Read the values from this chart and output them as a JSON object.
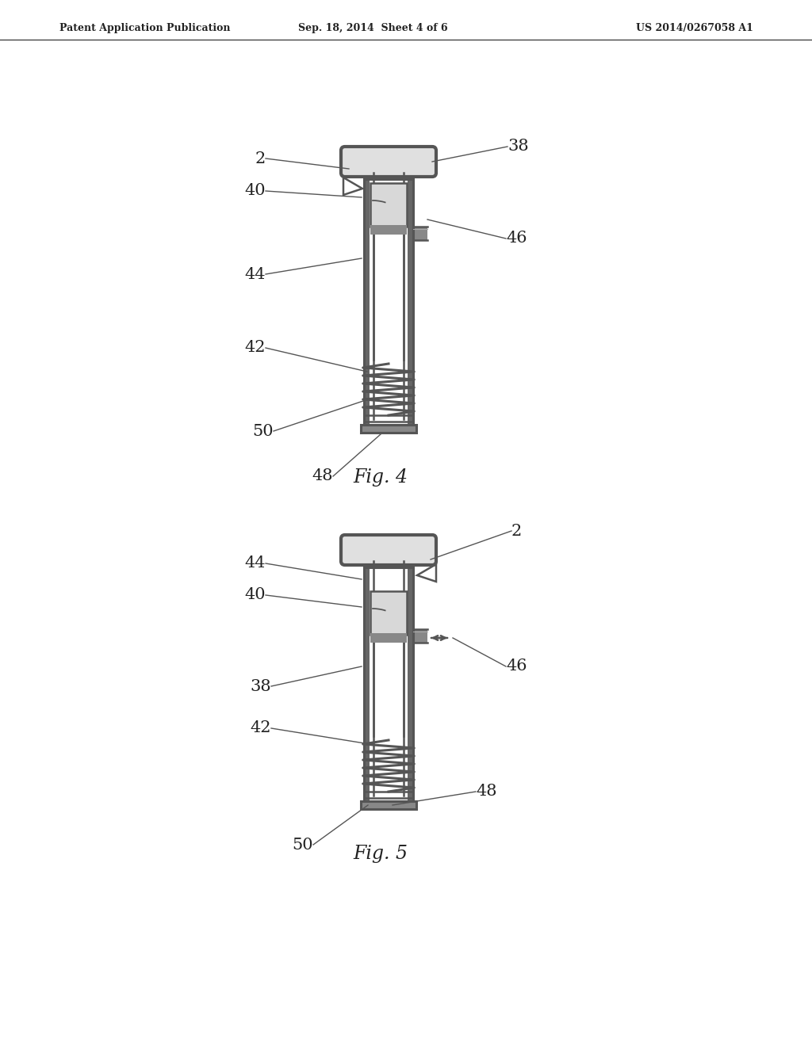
{
  "bg_color": "#ffffff",
  "lc": "#555555",
  "lc_dark": "#444444",
  "header_left": "Patent Application Publication",
  "header_center": "Sep. 18, 2014  Sheet 4 of 6",
  "header_right": "US 2014/0267058 A1",
  "fig4_title": "Fig. 4",
  "fig5_title": "Fig. 5",
  "note_color": "#222222"
}
